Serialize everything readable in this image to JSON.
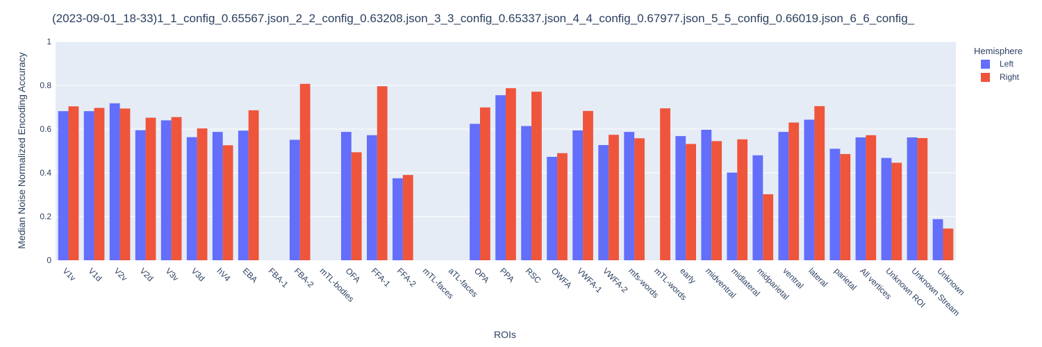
{
  "chart_data": {
    "type": "bar",
    "title": "(2023-09-01_18-33)1_1_config_0.65567.json_2_2_config_0.63208.json_3_3_config_0.65337.json_4_4_config_0.67977.json_5_5_config_0.66019.json_6_6_config_",
    "xlabel": "ROIs",
    "ylabel": "Median Noise Normalized Encoding Accuracy",
    "ylim": [
      0,
      1
    ],
    "yticks": [
      0,
      0.2,
      0.4,
      0.6,
      0.8,
      1
    ],
    "ytick_labels": [
      "0",
      "0.2",
      "0.4",
      "0.6",
      "0.8",
      "1"
    ],
    "grid": true,
    "legend": {
      "title": "Hemisphere",
      "position": "top-right"
    },
    "categories": [
      "V1v",
      "V1d",
      "V2v",
      "V2d",
      "V3v",
      "V3d",
      "hV4",
      "EBA",
      "FBA-1",
      "FBA-2",
      "mTL-bodies",
      "OFA",
      "FFA-1",
      "FFA-2",
      "mTL-faces",
      "aTL-faces",
      "OPA",
      "PPA",
      "RSC",
      "OWFA",
      "VWFA-1",
      "VWFA-2",
      "mfs-words",
      "mTL-words",
      "early",
      "midventral",
      "midlateral",
      "midparietal",
      "ventral",
      "lateral",
      "parietal",
      "All vertices",
      "Unknown ROI",
      "Unknown Stream",
      "Unknown"
    ],
    "series": [
      {
        "name": "Left",
        "color": "#636efa",
        "values": [
          0.682,
          0.682,
          0.718,
          0.595,
          0.64,
          0.563,
          0.587,
          0.593,
          null,
          0.551,
          null,
          0.587,
          0.572,
          0.375,
          null,
          null,
          0.624,
          0.755,
          0.614,
          0.473,
          0.594,
          0.527,
          0.587,
          null,
          0.568,
          0.597,
          0.401,
          0.48,
          0.587,
          0.643,
          0.51,
          0.562,
          0.468,
          0.562,
          0.188
        ]
      },
      {
        "name": "Right",
        "color": "#ef553b",
        "values": [
          0.704,
          0.697,
          0.694,
          0.652,
          0.655,
          0.603,
          0.526,
          0.686,
          null,
          0.807,
          null,
          0.494,
          0.796,
          0.39,
          null,
          null,
          0.699,
          0.787,
          0.771,
          0.49,
          0.683,
          0.574,
          0.558,
          0.695,
          0.532,
          0.545,
          0.553,
          0.302,
          0.63,
          0.705,
          0.486,
          0.572,
          0.446,
          0.559,
          0.145
        ]
      }
    ]
  }
}
